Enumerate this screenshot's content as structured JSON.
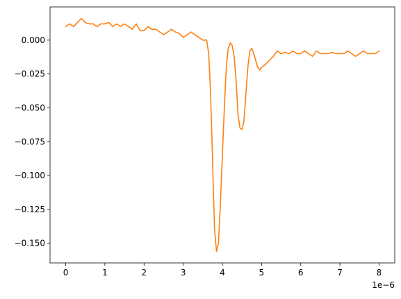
{
  "chart_data": {
    "type": "line",
    "title": "",
    "xlabel": "",
    "ylabel": "",
    "x_offset_text": "1e−6",
    "xlim": [
      -0.4,
      8.4
    ],
    "ylim": [
      -0.1645,
      0.0245
    ],
    "x_ticks": [
      0,
      1,
      2,
      3,
      4,
      5,
      6,
      7,
      8
    ],
    "x_tick_labels": [
      "0",
      "1",
      "2",
      "3",
      "4",
      "5",
      "6",
      "7",
      "8"
    ],
    "y_ticks": [
      0.0,
      -0.025,
      -0.05,
      -0.075,
      -0.1,
      -0.125,
      -0.15
    ],
    "y_tick_labels": [
      "0.000",
      "−0.025",
      "−0.050",
      "−0.075",
      "−0.100",
      "−0.125",
      "−0.150"
    ],
    "grid": false,
    "legend": "none",
    "series": [
      {
        "color": "#ff7f0e",
        "x": [
          0.0,
          0.1,
          0.2,
          0.3,
          0.4,
          0.5,
          0.6,
          0.7,
          0.8,
          0.9,
          1.0,
          1.1,
          1.2,
          1.3,
          1.4,
          1.5,
          1.6,
          1.7,
          1.8,
          1.9,
          2.0,
          2.1,
          2.2,
          2.3,
          2.4,
          2.5,
          2.6,
          2.7,
          2.8,
          2.9,
          3.0,
          3.1,
          3.2,
          3.3,
          3.4,
          3.5,
          3.6,
          3.65,
          3.7,
          3.75,
          3.8,
          3.85,
          3.9,
          3.95,
          4.0,
          4.05,
          4.1,
          4.15,
          4.2,
          4.25,
          4.3,
          4.35,
          4.4,
          4.45,
          4.5,
          4.55,
          4.6,
          4.65,
          4.7,
          4.75,
          4.8,
          4.85,
          4.9,
          4.95,
          5.0,
          5.1,
          5.2,
          5.3,
          5.4,
          5.5,
          5.6,
          5.7,
          5.8,
          5.9,
          6.0,
          6.1,
          6.2,
          6.3,
          6.4,
          6.5,
          6.6,
          6.7,
          6.8,
          6.9,
          7.0,
          7.1,
          7.2,
          7.3,
          7.4,
          7.5,
          7.6,
          7.7,
          7.8,
          7.9,
          8.0
        ],
        "y": [
          0.01,
          0.012,
          0.01,
          0.013,
          0.016,
          0.013,
          0.012,
          0.012,
          0.01,
          0.012,
          0.012,
          0.013,
          0.01,
          0.012,
          0.01,
          0.012,
          0.01,
          0.008,
          0.012,
          0.007,
          0.007,
          0.01,
          0.008,
          0.008,
          0.006,
          0.004,
          0.006,
          0.008,
          0.006,
          0.005,
          0.002,
          0.004,
          0.006,
          0.004,
          0.002,
          0.0,
          0.0,
          -0.01,
          -0.04,
          -0.09,
          -0.14,
          -0.156,
          -0.15,
          -0.12,
          -0.085,
          -0.05,
          -0.02,
          -0.006,
          -0.002,
          -0.004,
          -0.012,
          -0.03,
          -0.055,
          -0.065,
          -0.066,
          -0.06,
          -0.04,
          -0.02,
          -0.008,
          -0.006,
          -0.01,
          -0.015,
          -0.02,
          -0.022,
          -0.02,
          -0.018,
          -0.015,
          -0.012,
          -0.008,
          -0.01,
          -0.009,
          -0.01,
          -0.008,
          -0.01,
          -0.01,
          -0.008,
          -0.01,
          -0.012,
          -0.008,
          -0.01,
          -0.01,
          -0.01,
          -0.009,
          -0.01,
          -0.01,
          -0.01,
          -0.008,
          -0.01,
          -0.012,
          -0.01,
          -0.008,
          -0.01,
          -0.01,
          -0.01,
          -0.008
        ]
      }
    ]
  }
}
